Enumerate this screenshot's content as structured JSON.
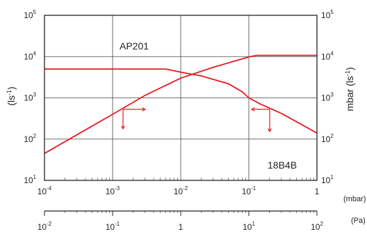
{
  "chart_data": {
    "type": "line",
    "x_scale": "log",
    "y_scale": "log",
    "xlim": [
      0.0001,
      1
    ],
    "ylim": [
      10,
      100000
    ],
    "grid": true,
    "left_ylabel": "(ls-1)",
    "right_ylabel": "mbar (ls-1)",
    "x_unit_label": "(mbar)",
    "secondary_x_unit_label": "(Pa)",
    "x_ticks": [
      {
        "base": "10",
        "exp": "-4"
      },
      {
        "base": "10",
        "exp": "-3"
      },
      {
        "base": "10",
        "exp": "-2"
      },
      {
        "base": "10",
        "exp": "-1"
      },
      {
        "base": "1",
        "exp": ""
      }
    ],
    "secondary_x_ticks": [
      {
        "base": "10",
        "exp": "-2"
      },
      {
        "base": "10",
        "exp": "-1"
      },
      {
        "base": "1",
        "exp": ""
      },
      {
        "base": "10",
        "exp": "1"
      },
      {
        "base": "10",
        "exp": "2"
      }
    ],
    "y_ticks": [
      {
        "base": "10",
        "exp": "1"
      },
      {
        "base": "10",
        "exp": "2"
      },
      {
        "base": "10",
        "exp": "3"
      },
      {
        "base": "10",
        "exp": "4"
      },
      {
        "base": "10",
        "exp": "5"
      }
    ],
    "annotations": [
      "AP201",
      "18B4B"
    ],
    "series": [
      {
        "color": "#e8191f",
        "x": [
          0.0001,
          0.001,
          0.003,
          0.006,
          0.01,
          0.02,
          0.05,
          0.08,
          0.1,
          0.15,
          0.3,
          1
        ],
        "y": [
          5000,
          5000,
          5000,
          5000,
          4200,
          3400,
          2200,
          1400,
          1000,
          700,
          420,
          140
        ]
      },
      {
        "color": "#e8191f",
        "x": [
          0.0001,
          0.001,
          0.003,
          0.01,
          0.03,
          0.1,
          0.13,
          0.2,
          1
        ],
        "y": [
          45,
          400,
          1150,
          3000,
          5500,
          9800,
          10700,
          10700,
          10700
        ]
      }
    ]
  }
}
